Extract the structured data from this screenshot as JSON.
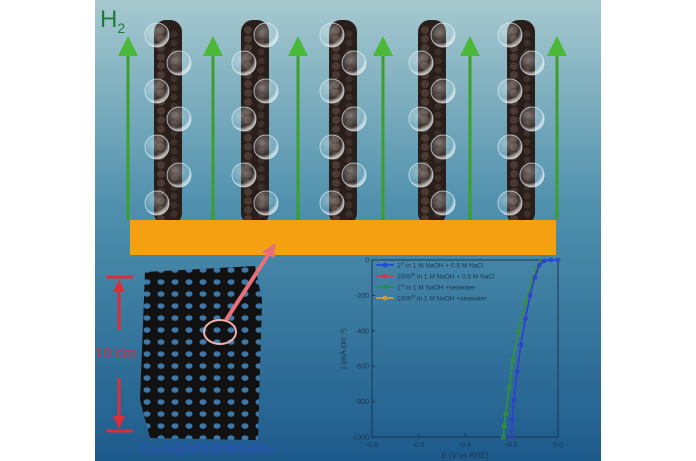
{
  "labels": {
    "gas": "H",
    "gas_subscript": "2",
    "scale": "10 cm",
    "material": "Cu₂S@NiS@Ni/NiMo"
  },
  "colors": {
    "background_top": "#9fc4cc",
    "background_bottom": "#1f5f8f",
    "arrow": "#3aa02a",
    "substrate": "#f5a011",
    "pointer": "#e8707a",
    "scale_bar": "#d8303a",
    "material_label": "#2a4fc0"
  },
  "chart_data": {
    "type": "line",
    "xlabel": "E (V vs RHE)",
    "ylabel": "j (mA cm⁻²)",
    "xlim": [
      -0.8,
      0.0
    ],
    "ylim": [
      -1000,
      0
    ],
    "xticks": [
      "-0.8",
      "-0.6",
      "-0.4",
      "-0.2",
      "0.0"
    ],
    "xtick_values": [
      -0.8,
      -0.6,
      -0.4,
      -0.2,
      0.0
    ],
    "yticks": [
      "0",
      "-200",
      "-400",
      "-600",
      "-800",
      "-1000"
    ],
    "ytick_values": [
      0,
      -200,
      -400,
      -600,
      -800,
      -1000
    ],
    "legend_position": "top-left",
    "grid": false,
    "series": [
      {
        "name": "1st in 1 M NaOH + 0.5 M NaCl",
        "color": "#2040e0",
        "x": [
          0.0,
          -0.03,
          -0.06,
          -0.08,
          -0.1,
          -0.12,
          -0.14,
          -0.16,
          -0.175,
          -0.19,
          -0.197,
          -0.2
        ],
        "y": [
          0,
          0,
          -5,
          -30,
          -100,
          -200,
          -330,
          -480,
          -630,
          -790,
          -900,
          -1000
        ]
      },
      {
        "name": "1000th in 1 M NaOH + 0.5 M NaCl",
        "color": "#e03040",
        "x": [
          -0.06,
          -0.08,
          -0.1,
          -0.12,
          -0.14,
          -0.16,
          -0.175,
          -0.19,
          -0.197,
          -0.2
        ],
        "y": [
          -5,
          -30,
          -100,
          -200,
          -330,
          -480,
          -630,
          -790,
          -900,
          -1000
        ]
      },
      {
        "name": "1st in 1 M NaOH +seawater",
        "color": "#209040",
        "x": [
          -0.07,
          -0.09,
          -0.11,
          -0.14,
          -0.17,
          -0.195,
          -0.21,
          -0.225,
          -0.232,
          -0.235
        ],
        "y": [
          -5,
          -40,
          -110,
          -240,
          -400,
          -570,
          -720,
          -870,
          -940,
          -1000
        ]
      },
      {
        "name": "1000th in 1 M NaOH +seawater",
        "color": "#f0a020",
        "x": [
          -0.07,
          -0.09,
          -0.11,
          -0.14,
          -0.17,
          -0.195,
          -0.21,
          -0.225,
          -0.232,
          -0.235
        ],
        "y": [
          -5,
          -40,
          -110,
          -240,
          -400,
          -570,
          -720,
          -870,
          -940,
          -1000
        ]
      }
    ],
    "legend": [
      {
        "ord": "1",
        "sup": "st",
        "rest": " in 1 M NaOH + 0.5 M NaCl"
      },
      {
        "ord": "1000",
        "sup": "th",
        "rest": " in 1 M NaOH + 0.5 M NaCl"
      },
      {
        "ord": "1",
        "sup": "st",
        "rest": " in 1 M NaOH +seawater"
      },
      {
        "ord": "1000",
        "sup": "th",
        "rest": " in 1 M NaOH +seawater"
      }
    ]
  }
}
